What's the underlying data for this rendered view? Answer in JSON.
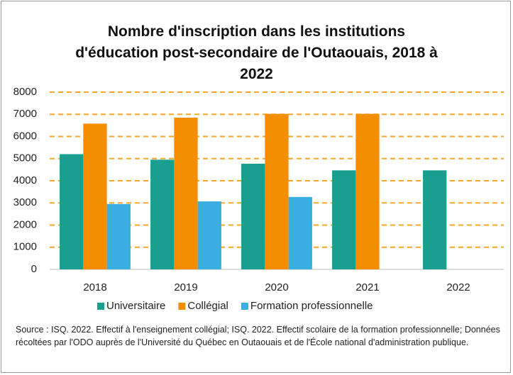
{
  "chart_data": {
    "type": "bar",
    "title": "Nombre d'inscription dans les institutions d'éducation post-secondaire de l'Outaouais, 2018 à 2022",
    "categories": [
      "2018",
      "2019",
      "2020",
      "2021",
      "2022"
    ],
    "series": [
      {
        "name": "Universitaire",
        "color": "#1a9e8f",
        "values": [
          5200,
          4950,
          4770,
          4470,
          4470
        ]
      },
      {
        "name": "Collégial",
        "color": "#f28e00",
        "values": [
          6580,
          6850,
          7020,
          7020,
          null
        ]
      },
      {
        "name": "Formation professionnelle",
        "color": "#3aaee0",
        "values": [
          2950,
          3070,
          3270,
          null,
          null
        ]
      }
    ],
    "ylim": [
      0,
      8000
    ],
    "yticks": [
      0,
      1000,
      2000,
      3000,
      4000,
      5000,
      6000,
      7000,
      8000
    ],
    "grid": true,
    "legend": "bottom",
    "source": "Source : ISQ. 2022. Effectif à l'enseignement collégial;  ISQ. 2022. Effectif scolaire de la formation professionnelle; Données récoltées par l'ODO auprès de l'Université du Québec en Outaouais et de l'École national d'administration publique."
  }
}
